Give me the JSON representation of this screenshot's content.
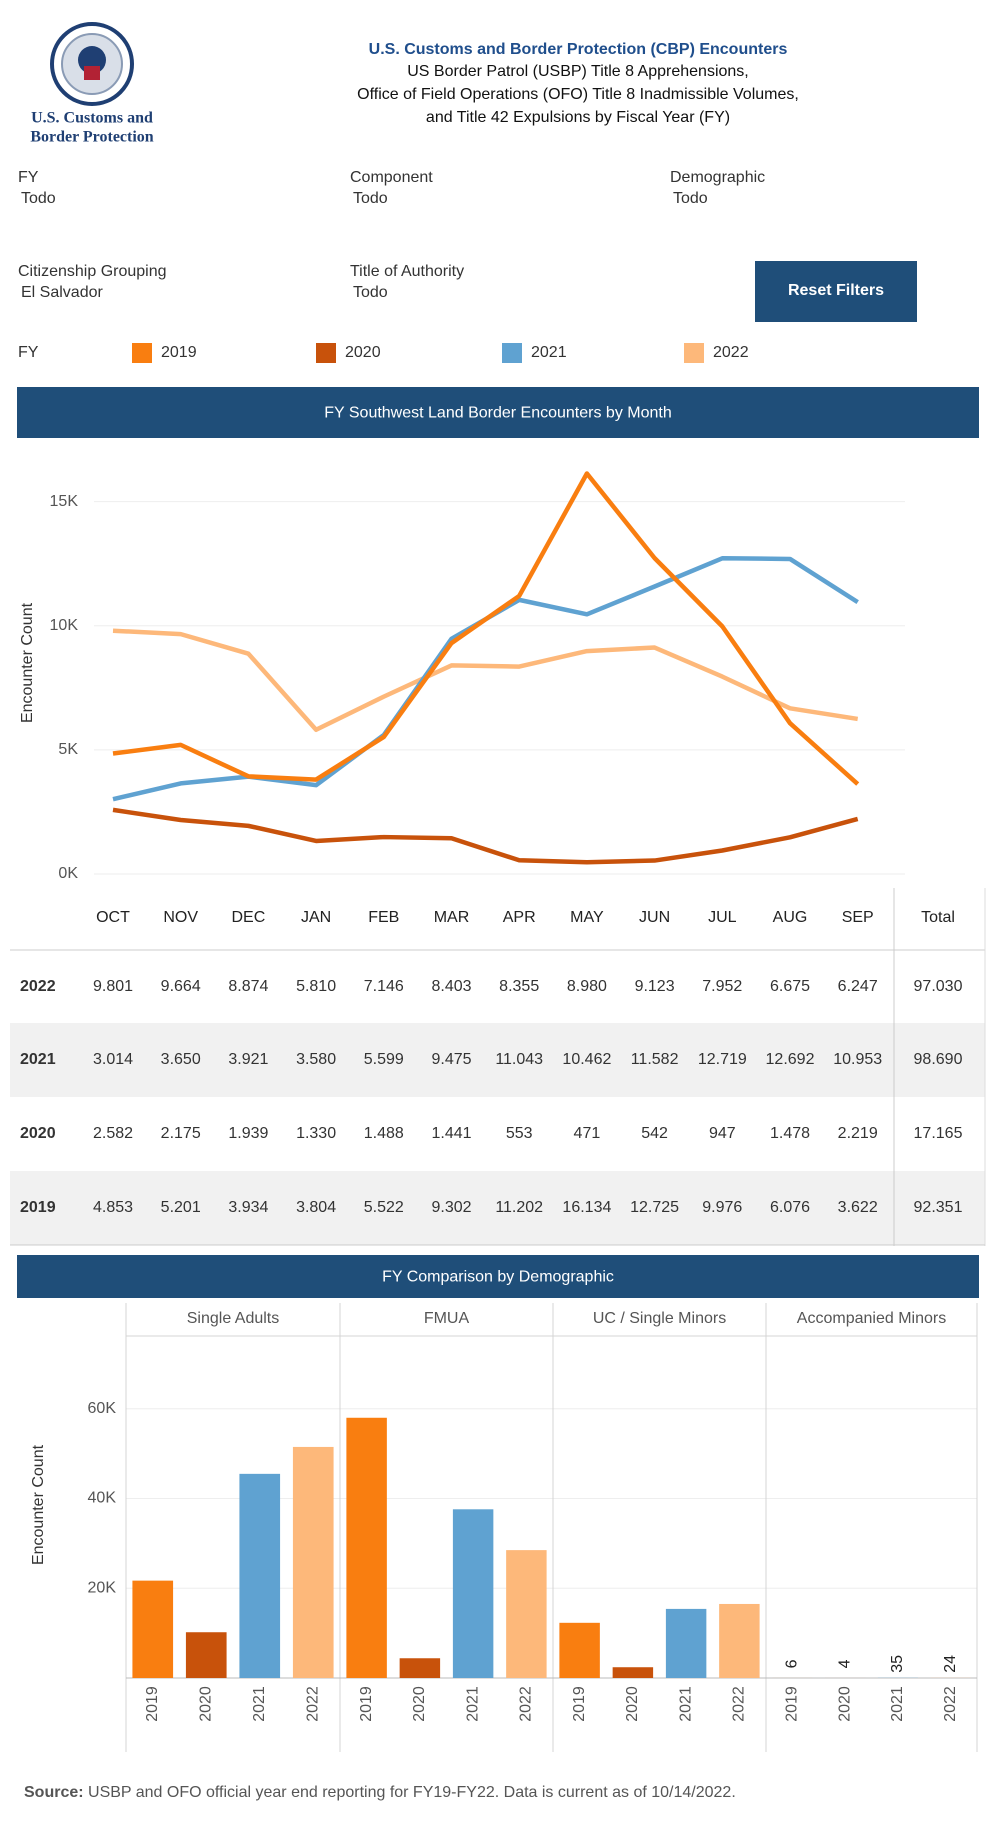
{
  "header": {
    "org": [
      "U.S. Customs and",
      "Border Protection"
    ],
    "title": "U.S. Customs and Border Protection (CBP) Encounters",
    "subtitle": [
      "US Border Patrol (USBP) Title 8 Apprehensions,",
      "Office of Field Operations (OFO) Title 8 Inadmissible Volumes,",
      "and Title 42 Expulsions by Fiscal Year (FY)"
    ]
  },
  "filters": [
    {
      "label": "FY",
      "value": "Todo"
    },
    {
      "label": "Component",
      "value": "Todo"
    },
    {
      "label": "Demographic",
      "value": "Todo"
    },
    {
      "label": "Citizenship Grouping",
      "value": "El Salvador"
    },
    {
      "label": "Title of Authority",
      "value": "Todo"
    }
  ],
  "reset_button": "Reset Filters",
  "chart_data": [
    {
      "type": "line",
      "title": "FY Southwest Land Border Encounters by Month",
      "legend_title": "FY",
      "y_label": "Encounter Count",
      "categories": [
        "OCT",
        "NOV",
        "DEC",
        "JAN",
        "FEB",
        "MAR",
        "APR",
        "MAY",
        "JUN",
        "JUL",
        "AUG",
        "SEP"
      ],
      "ylim": [
        0,
        17000
      ],
      "yticks": [
        {
          "value": 0,
          "label": "0K"
        },
        {
          "value": 5000,
          "label": "5K"
        },
        {
          "value": 10000,
          "label": "10K"
        },
        {
          "value": 15000,
          "label": "15K"
        }
      ],
      "grid": true,
      "series": [
        {
          "name": "2019",
          "color": "#f97e10",
          "values": [
            4853,
            5201,
            3934,
            3804,
            5522,
            9302,
            11202,
            16134,
            12725,
            9976,
            6076,
            3622
          ]
        },
        {
          "name": "2020",
          "color": "#c8520b",
          "values": [
            2582,
            2175,
            1939,
            1330,
            1488,
            1441,
            553,
            471,
            542,
            947,
            1478,
            2219
          ]
        },
        {
          "name": "2021",
          "color": "#5fa2d1",
          "values": [
            3014,
            3650,
            3921,
            3580,
            5599,
            9475,
            11043,
            10462,
            11582,
            12719,
            12692,
            10953
          ]
        },
        {
          "name": "2022",
          "color": "#fdb87a",
          "values": [
            9801,
            9664,
            8874,
            5810,
            7146,
            8403,
            8355,
            8980,
            9123,
            7952,
            6675,
            6247
          ]
        }
      ]
    },
    {
      "type": "bar",
      "title": "FY Comparison by Demographic",
      "y_label": "Encounter Count",
      "ylim": [
        0,
        76000
      ],
      "yticks": [
        {
          "value": 20000,
          "label": "20K"
        },
        {
          "value": 40000,
          "label": "40K"
        },
        {
          "value": 60000,
          "label": "60K"
        }
      ],
      "grid": true,
      "panels": [
        {
          "name": "Single Adults",
          "categories": [
            "2019",
            "2020",
            "2021",
            "2022"
          ],
          "values": [
            21700,
            10200,
            45500,
            51500
          ],
          "show_labels": false
        },
        {
          "name": "FMUA",
          "categories": [
            "2019",
            "2020",
            "2021",
            "2022"
          ],
          "values": [
            58000,
            4400,
            37600,
            28500
          ],
          "show_labels": false
        },
        {
          "name": "UC / Single Minors",
          "categories": [
            "2019",
            "2020",
            "2021",
            "2022"
          ],
          "values": [
            12300,
            2400,
            15400,
            16500
          ],
          "show_labels": false
        },
        {
          "name": "Accompanied Minors",
          "categories": [
            "2019",
            "2020",
            "2021",
            "2022"
          ],
          "values": [
            6,
            4,
            35,
            24
          ],
          "show_labels": true
        }
      ]
    }
  ],
  "table": {
    "total_header": "Total",
    "rows": [
      {
        "year": "2022",
        "cells": [
          "9.801",
          "9.664",
          "8.874",
          "5.810",
          "7.146",
          "8.403",
          "8.355",
          "8.980",
          "9.123",
          "7.952",
          "6.675",
          "6.247"
        ],
        "total": "97.030"
      },
      {
        "year": "2021",
        "cells": [
          "3.014",
          "3.650",
          "3.921",
          "3.580",
          "5.599",
          "9.475",
          "11.043",
          "10.462",
          "11.582",
          "12.719",
          "12.692",
          "10.953"
        ],
        "total": "98.690"
      },
      {
        "year": "2020",
        "cells": [
          "2.582",
          "2.175",
          "1.939",
          "1.330",
          "1.488",
          "1.441",
          "553",
          "471",
          "542",
          "947",
          "1.478",
          "2.219"
        ],
        "total": "17.165"
      },
      {
        "year": "2019",
        "cells": [
          "4.853",
          "5.201",
          "3.934",
          "3.804",
          "5.522",
          "9.302",
          "11.202",
          "16.134",
          "12.725",
          "9.976",
          "6.076",
          "3.622"
        ],
        "total": "92.351"
      }
    ]
  },
  "source": {
    "label": "Source:",
    "text": " USBP and OFO official year end reporting for FY19-FY22. Data is current as of 10/14/2022."
  }
}
